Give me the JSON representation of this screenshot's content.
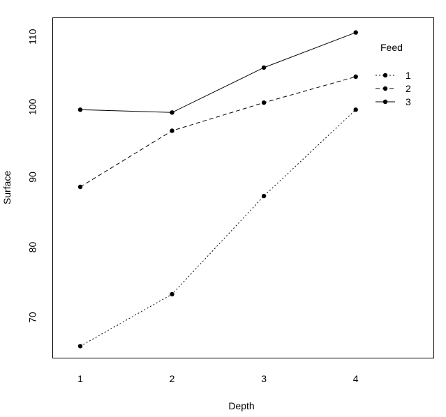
{
  "chart_data": {
    "type": "line",
    "title": "",
    "xlabel": "Depth",
    "ylabel": "Surface",
    "x": [
      1,
      2,
      3,
      4
    ],
    "xticks": [
      "1",
      "2",
      "3",
      "4"
    ],
    "yticks": [
      "70",
      "80",
      "90",
      "100",
      "110"
    ],
    "xlim": [
      0.7,
      4.85
    ],
    "ylim": [
      64.2,
      112.7
    ],
    "grid": false,
    "legend": {
      "title": "Feed",
      "position": "top-right",
      "entries": [
        "1",
        "2",
        "3"
      ]
    },
    "series": [
      {
        "name": "1",
        "line_style": "dotted",
        "values": [
          65.9,
          73.3,
          87.3,
          99.6
        ]
      },
      {
        "name": "2",
        "line_style": "dashed",
        "values": [
          88.6,
          96.6,
          100.6,
          104.3
        ]
      },
      {
        "name": "3",
        "line_style": "solid",
        "values": [
          99.6,
          99.2,
          105.6,
          110.6
        ]
      }
    ],
    "colors": {
      "line": "#000000",
      "point": "#000000",
      "frame": "#000000",
      "background": "#ffffff"
    }
  }
}
